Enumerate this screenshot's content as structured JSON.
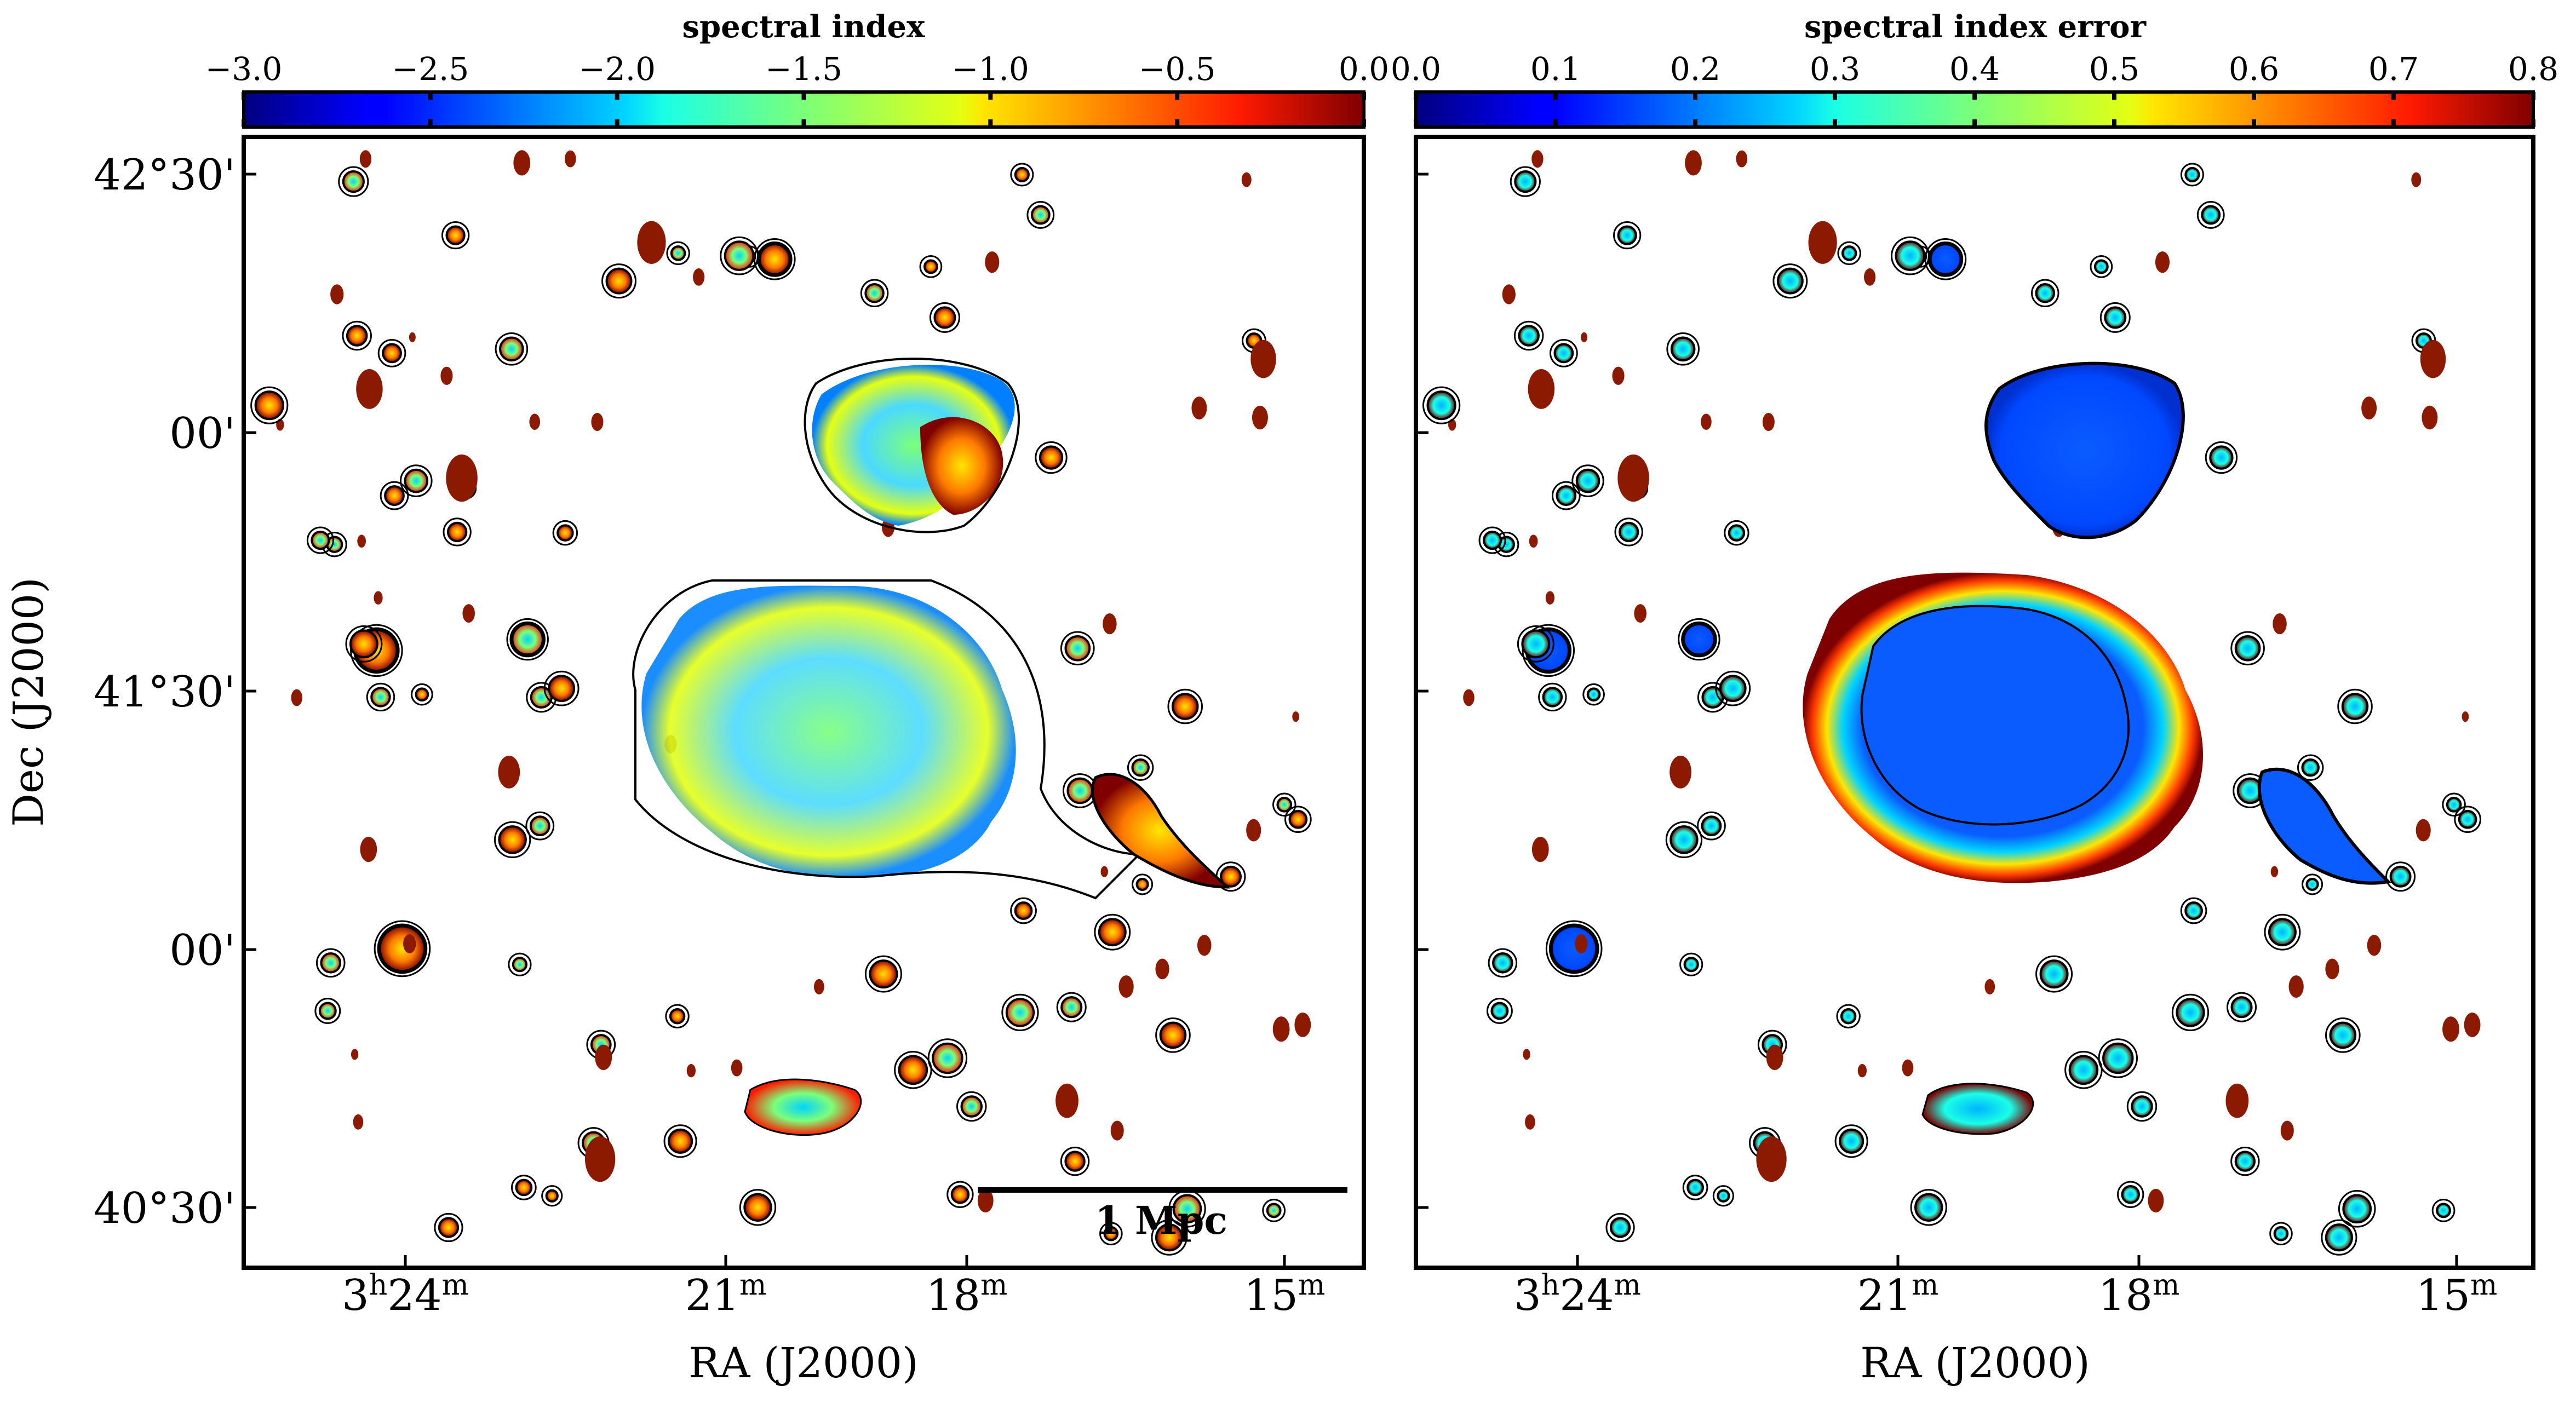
{
  "figure": {
    "left_panel": {
      "colorbar_label": "spectral index",
      "colorbar_ticks": [
        "−3.0",
        "−2.5",
        "−2.0",
        "−1.5",
        "−1.0",
        "−0.5",
        "0.0"
      ],
      "colorbar_range": [
        -3.0,
        0.0
      ],
      "colormap": "jet",
      "scalebar_label": "1 Mpc"
    },
    "right_panel": {
      "colorbar_label": "spectral index error",
      "colorbar_ticks": [
        "0.0",
        "0.1",
        "0.2",
        "0.3",
        "0.4",
        "0.5",
        "0.6",
        "0.7",
        "0.8"
      ],
      "colorbar_range": [
        0.0,
        0.8
      ],
      "colormap": "jet"
    },
    "axes": {
      "ylabel": "Dec (J2000)",
      "xlabel": "RA (J2000)",
      "y_ticks": [
        {
          "deg": "42°30′",
          "text": "42°30'"
        },
        {
          "deg": "00'",
          "text": "00'"
        },
        {
          "deg": "41°30′",
          "text": "41°30'"
        },
        {
          "deg": "00'",
          "text": "00'"
        },
        {
          "deg": "40°30′",
          "text": "40°30'"
        }
      ],
      "x_ticks": [
        {
          "h": "3",
          "m": "24"
        },
        {
          "h": "",
          "m": "21"
        },
        {
          "h": "",
          "m": "18"
        },
        {
          "h": "",
          "m": "15"
        }
      ]
    },
    "colors": {
      "frame": "#000000",
      "contour": "#000000",
      "background": "#ffffff"
    }
  }
}
